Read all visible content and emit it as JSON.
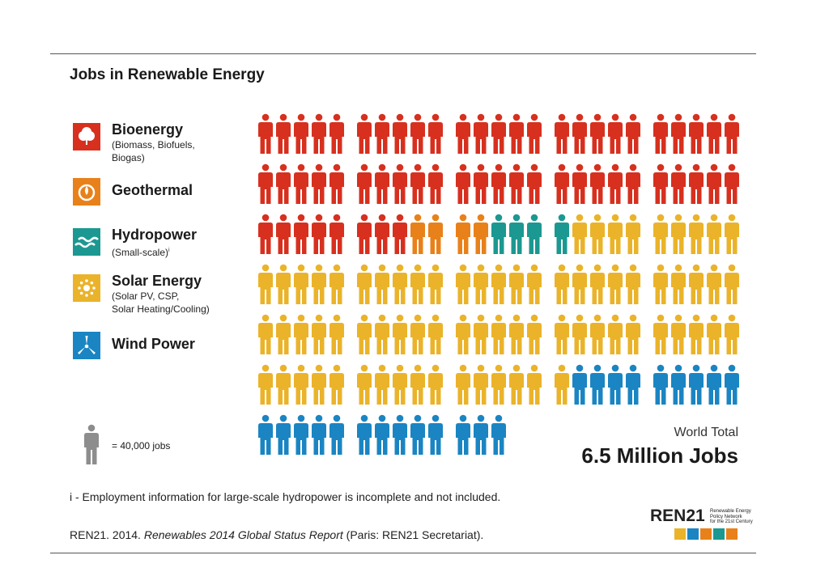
{
  "title": "Jobs in Renewable Energy",
  "legend": [
    {
      "key": "bio",
      "name": "Bioenergy",
      "sub": [
        "(Biomass, Biofuels,",
        "Biogas)"
      ],
      "color": "#d7301f",
      "icon": "leaf-icon"
    },
    {
      "key": "geo",
      "name": "Geothermal",
      "sub": [],
      "color": "#e8811a",
      "icon": "flame-icon"
    },
    {
      "key": "hydro",
      "name": "Hydropower",
      "sub": [
        "(Small-scale)"
      ],
      "sub_marker": "i",
      "color": "#1b9891",
      "icon": "waves-icon"
    },
    {
      "key": "solar",
      "name": "Solar Energy",
      "sub": [
        "(Solar PV, CSP,",
        "Solar Heating/Cooling)"
      ],
      "color": "#eab32a",
      "icon": "sun-icon"
    },
    {
      "key": "wind",
      "name": "Wind Power",
      "sub": [],
      "color": "#1a85c2",
      "icon": "turbine-icon"
    }
  ],
  "unit_label": "= 40,000 jobs",
  "unit_color": "#8d8d8d",
  "world_total_label": "World Total",
  "world_total_value": "6.5 Million Jobs",
  "footnote": "i - Employment information for large-scale hydropower is incomplete and not included.",
  "citation": {
    "pre": "REN21. 2014. ",
    "title": "Renewables 2014 Global Status Report",
    "post": " (Paris: REN21 Secretariat)."
  },
  "logo": {
    "text": "REN21",
    "tagline": [
      "Renewable Energy",
      "Policy Network",
      "for the 21st Century"
    ],
    "squares": [
      "#eab32a",
      "#1a85c2",
      "#e8811a",
      "#1b9891",
      "#e8811a"
    ]
  },
  "chart_data": {
    "type": "pictogram",
    "unit_value": 40000,
    "unit_label": "= 40,000 jobs",
    "layout": {
      "rows": 7,
      "groups_per_row": 5,
      "figures_per_group": 5
    },
    "series": [
      {
        "name": "Bioenergy",
        "icons": 58,
        "color": "#d7301f"
      },
      {
        "name": "Geothermal",
        "icons": 4,
        "color": "#e8811a"
      },
      {
        "name": "Hydropower",
        "icons": 4,
        "color": "#1b9891"
      },
      {
        "name": "Solar Energy",
        "icons": 75,
        "color": "#eab32a"
      },
      {
        "name": "Wind Power",
        "icons": 22,
        "color": "#1a85c2"
      }
    ],
    "total_label": "World Total",
    "total_value": "6.5 Million Jobs"
  }
}
